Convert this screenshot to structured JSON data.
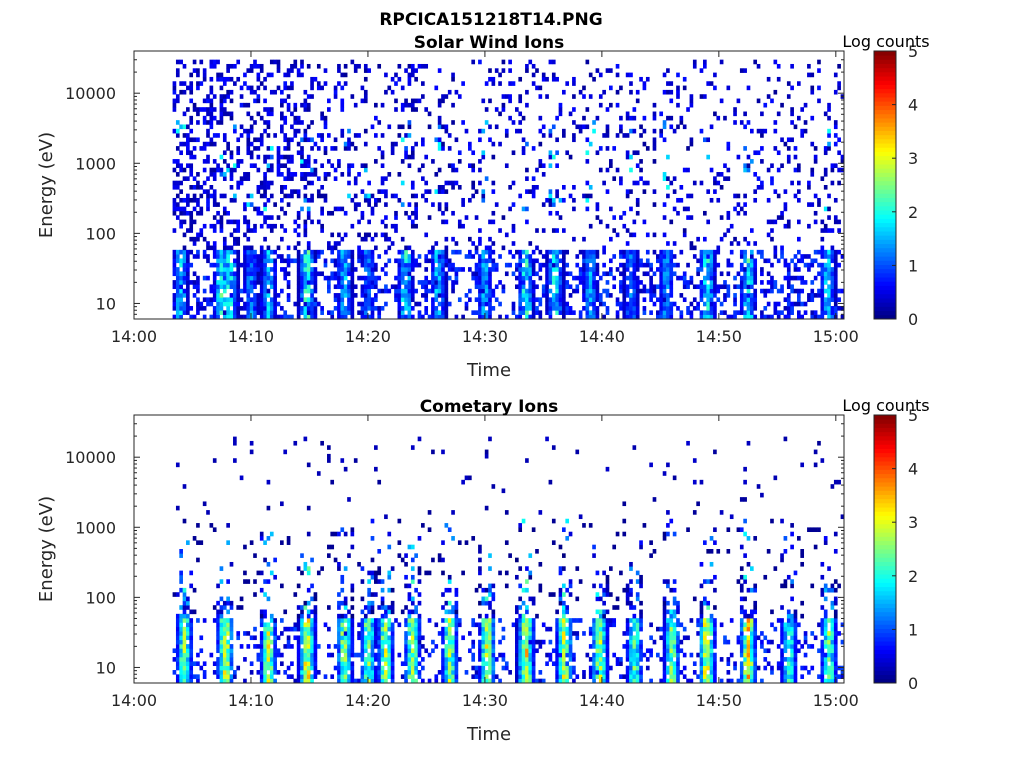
{
  "figure": {
    "title": "RPCICA151218T14.PNG"
  },
  "chart_data": [
    {
      "type": "heatmap",
      "title": "Solar Wind Ions",
      "xlabel": "Time",
      "ylabel": "Energy (eV)",
      "x_tick_labels": [
        "14:00",
        "14:10",
        "14:20",
        "14:30",
        "14:40",
        "14:50",
        "15:00"
      ],
      "x_tick_minutes": [
        0,
        10,
        20,
        30,
        40,
        50,
        60
      ],
      "xlim_minutes": [
        0,
        60.7
      ],
      "y_scale": "log",
      "y_tick_labels": [
        "10",
        "100",
        "1000",
        "10000"
      ],
      "y_tick_values": [
        10,
        100,
        1000,
        10000
      ],
      "ylim": [
        6,
        40000
      ],
      "data_start_minute": 3.3,
      "colorbar": {
        "label": "Log counts",
        "ticks": [
          0,
          1,
          2,
          3,
          4,
          5
        ],
        "range": [
          0,
          5
        ],
        "colormap": "jet"
      },
      "activity_bursts": [
        {
          "minute": 4.0,
          "peak": 2.0
        },
        {
          "minute": 7.5,
          "peak": 2.6
        },
        {
          "minute": 8.2,
          "peak": 2.3
        },
        {
          "minute": 10.0,
          "peak": 1.6
        },
        {
          "minute": 11.5,
          "peak": 2.0
        },
        {
          "minute": 14.8,
          "peak": 2.6
        },
        {
          "minute": 18.0,
          "peak": 2.0
        },
        {
          "minute": 20.0,
          "peak": 1.5
        },
        {
          "minute": 23.2,
          "peak": 2.4
        },
        {
          "minute": 26.0,
          "peak": 2.0
        },
        {
          "minute": 30.0,
          "peak": 1.8
        },
        {
          "minute": 33.5,
          "peak": 2.6
        },
        {
          "minute": 36.0,
          "peak": 2.4
        },
        {
          "minute": 39.0,
          "peak": 1.8
        },
        {
          "minute": 42.5,
          "peak": 1.5
        },
        {
          "minute": 45.5,
          "peak": 1.6
        },
        {
          "minute": 49.0,
          "peak": 2.4
        },
        {
          "minute": 52.5,
          "peak": 2.5
        },
        {
          "minute": 59.3,
          "peak": 2.0
        }
      ]
    },
    {
      "type": "heatmap",
      "title": "Cometary Ions",
      "xlabel": "Time",
      "ylabel": "Energy (eV)",
      "x_tick_labels": [
        "14:00",
        "14:10",
        "14:20",
        "14:30",
        "14:40",
        "14:50",
        "15:00"
      ],
      "x_tick_minutes": [
        0,
        10,
        20,
        30,
        40,
        50,
        60
      ],
      "xlim_minutes": [
        0,
        60.7
      ],
      "y_scale": "log",
      "y_tick_labels": [
        "10",
        "100",
        "1000",
        "10000"
      ],
      "y_tick_values": [
        10,
        100,
        1000,
        10000
      ],
      "ylim": [
        6,
        40000
      ],
      "data_start_minute": 3.3,
      "colorbar": {
        "label": "Log counts",
        "ticks": [
          0,
          1,
          2,
          3,
          4,
          5
        ],
        "range": [
          0,
          5
        ],
        "colormap": "jet"
      },
      "activity_bursts": [
        {
          "minute": 4.3,
          "peak": 3.0
        },
        {
          "minute": 7.8,
          "peak": 3.6
        },
        {
          "minute": 11.5,
          "peak": 3.4
        },
        {
          "minute": 14.8,
          "peak": 3.8
        },
        {
          "minute": 18.0,
          "peak": 3.2
        },
        {
          "minute": 20.0,
          "peak": 3.0
        },
        {
          "minute": 21.5,
          "peak": 3.3
        },
        {
          "minute": 23.8,
          "peak": 3.3
        },
        {
          "minute": 27.0,
          "peak": 3.2
        },
        {
          "minute": 30.2,
          "peak": 3.4
        },
        {
          "minute": 33.5,
          "peak": 3.8
        },
        {
          "minute": 36.8,
          "peak": 3.5
        },
        {
          "minute": 39.8,
          "peak": 3.4
        },
        {
          "minute": 42.8,
          "peak": 2.8
        },
        {
          "minute": 46.0,
          "peak": 3.0
        },
        {
          "minute": 49.0,
          "peak": 3.8
        },
        {
          "minute": 52.5,
          "peak": 3.9
        },
        {
          "minute": 56.0,
          "peak": 2.6
        },
        {
          "minute": 59.4,
          "peak": 3.0
        }
      ]
    }
  ]
}
